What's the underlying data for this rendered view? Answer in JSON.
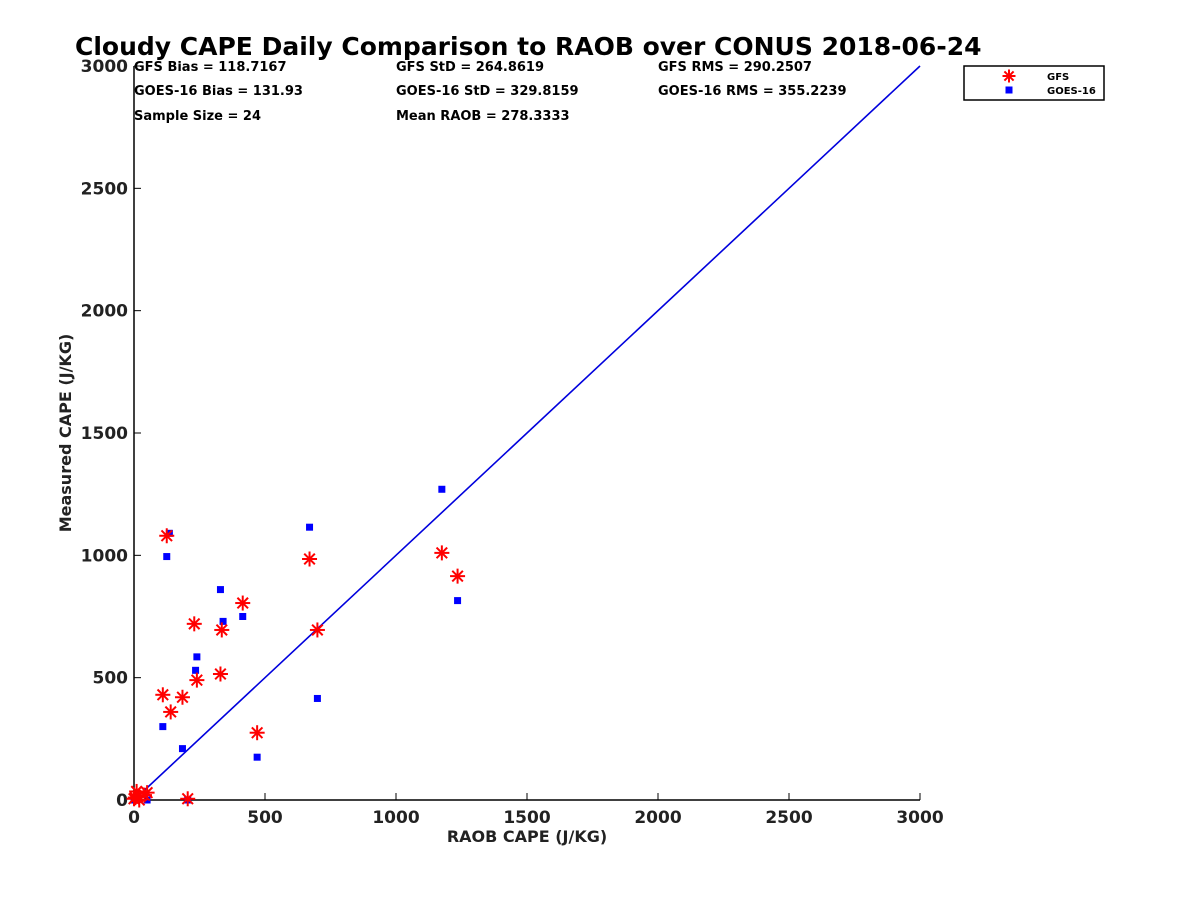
{
  "chart_data": {
    "type": "scatter",
    "title": "Cloudy CAPE Daily Comparison to RAOB over CONUS 2018-06-24",
    "xlabel": "RAOB CAPE (J/KG)",
    "ylabel": "Measured CAPE (J/KG)",
    "xlim": [
      0,
      3000
    ],
    "ylim": [
      0,
      3000
    ],
    "xticks": [
      0,
      500,
      1000,
      1500,
      2000,
      2500,
      3000
    ],
    "yticks": [
      0,
      500,
      1000,
      1500,
      2000,
      2500,
      3000
    ],
    "xtick_labels": [
      "0",
      "500",
      "1000",
      "1500",
      "2000",
      "2500",
      "3000"
    ],
    "ytick_labels": [
      "0",
      "500",
      "1000",
      "1500",
      "2000",
      "2500",
      "3000"
    ],
    "grid": false,
    "legend_position": "top-right",
    "stats": [
      {
        "text": "GFS Bias = 118.7167"
      },
      {
        "text": "GFS StD = 264.8619"
      },
      {
        "text": "GFS RMS = 290.2507"
      },
      {
        "text": "GOES-16 Bias = 131.93"
      },
      {
        "text": "GOES-16 StD = 329.8159"
      },
      {
        "text": "GOES-16 RMS = 355.2239"
      },
      {
        "text": "Sample Size = 24"
      },
      {
        "text": "Mean RAOB = 278.3333"
      }
    ],
    "series": [
      {
        "name": "GFS",
        "marker": "asterisk",
        "color": "#ff0000",
        "points": [
          [
            0,
            5
          ],
          [
            5,
            10
          ],
          [
            10,
            35
          ],
          [
            15,
            15
          ],
          [
            20,
            0
          ],
          [
            40,
            20
          ],
          [
            50,
            30
          ],
          [
            110,
            430
          ],
          [
            125,
            1080
          ],
          [
            140,
            360
          ],
          [
            185,
            420
          ],
          [
            205,
            5
          ],
          [
            230,
            720
          ],
          [
            240,
            490
          ],
          [
            330,
            515
          ],
          [
            335,
            695
          ],
          [
            415,
            805
          ],
          [
            470,
            275
          ],
          [
            670,
            985
          ],
          [
            700,
            695
          ],
          [
            1175,
            1010
          ],
          [
            1235,
            915
          ]
        ]
      },
      {
        "name": "GOES-16",
        "marker": "square",
        "color": "#0000ff",
        "points": [
          [
            0,
            0
          ],
          [
            5,
            5
          ],
          [
            10,
            10
          ],
          [
            50,
            0
          ],
          [
            110,
            300
          ],
          [
            125,
            995
          ],
          [
            135,
            1090
          ],
          [
            185,
            210
          ],
          [
            205,
            0
          ],
          [
            235,
            530
          ],
          [
            240,
            585
          ],
          [
            330,
            860
          ],
          [
            340,
            730
          ],
          [
            415,
            750
          ],
          [
            470,
            175
          ],
          [
            670,
            1115
          ],
          [
            700,
            415
          ],
          [
            1175,
            1270
          ],
          [
            1235,
            815
          ]
        ]
      }
    ],
    "reference_line": {
      "x": [
        0,
        3000
      ],
      "y": [
        0,
        3000
      ],
      "color": "#0000dd"
    }
  }
}
